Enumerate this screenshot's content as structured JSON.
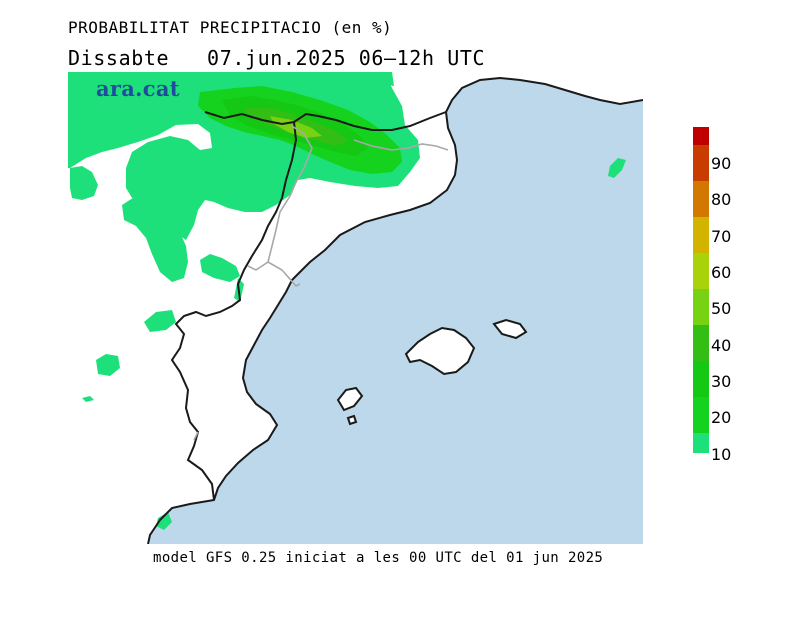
{
  "header": {
    "title": "PROBABILITAT PRECIPITACIO (en %)",
    "subtitle": "Dissabte   07.jun.2025 06–12h UTC"
  },
  "watermark": {
    "text": "ara.cat"
  },
  "footer": {
    "text": "model GFS 0.25 iniciat a les 00 UTC del 01 jun 2025"
  },
  "legend": {
    "items": [
      {
        "label": "10",
        "color": "#1ee07a"
      },
      {
        "label": "20",
        "color": "#14d21e"
      },
      {
        "label": "30",
        "color": "#14c814"
      },
      {
        "label": "40",
        "color": "#32be14"
      },
      {
        "label": "50",
        "color": "#78d214"
      },
      {
        "label": "60",
        "color": "#aad20a"
      },
      {
        "label": "70",
        "color": "#d2b400"
      },
      {
        "label": "80",
        "color": "#d27800"
      },
      {
        "label": "90",
        "color": "#c83c00"
      },
      {
        "label": "",
        "color": "#c00000"
      }
    ]
  },
  "colors": {
    "sea": "#bcd8ea",
    "land": "#ffffff",
    "coast": "#1a1a1a",
    "border": "#a8a8a8"
  }
}
